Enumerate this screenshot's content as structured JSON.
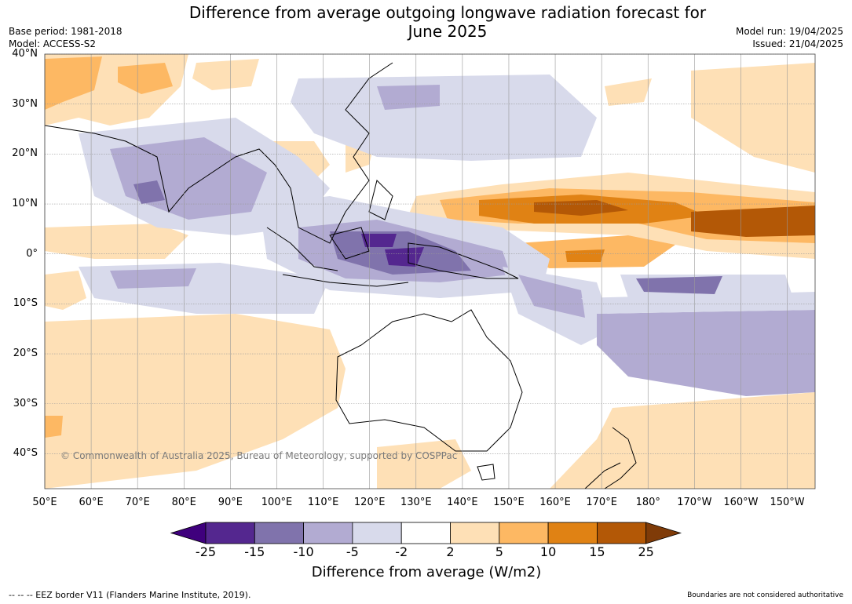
{
  "title": "Difference from average outgoing longwave radiation forecast for\nJune 2025",
  "meta_left": [
    "Base period: 1981-2018",
    "Model: ACCESS-S2"
  ],
  "meta_right": [
    "Model run: 19/04/2025",
    "Issued: 21/04/2025"
  ],
  "copyright": "© Commonwealth of Australia 2025, Bureau of Meteorology, supported by COSPPac",
  "lat_labels": [
    "40°N",
    "30°N",
    "20°N",
    "10°N",
    "0°",
    "10°S",
    "20°S",
    "30°S",
    "40°S"
  ],
  "lon_labels": [
    "50°E",
    "60°E",
    "70°E",
    "80°E",
    "90°E",
    "100°E",
    "110°E",
    "120°E",
    "130°E",
    "140°E",
    "150°E",
    "160°E",
    "170°E",
    "180°",
    "170°W",
    "160°W",
    "150°W"
  ],
  "colorbar": {
    "label": "Difference from average (W/m2)",
    "ticks": [
      "-25",
      "-15",
      "-10",
      "-5",
      "-2",
      "2",
      "5",
      "10",
      "15",
      "25"
    ],
    "colors": [
      "#3f007d",
      "#54278f",
      "#8073ac",
      "#b2abd2",
      "#d8daeb",
      "#ffffff",
      "#fee0b6",
      "#fdb863",
      "#e08214",
      "#b35806",
      "#7f3b08"
    ]
  },
  "footer_left": "--  --  -- EEZ border V11 (Flanders Marine Institute, 2019).",
  "footer_right": "Boundaries are not considered authoritative",
  "map_extent": {
    "lon_min": 50,
    "lon_max": 216,
    "lat_min": -47,
    "lat_max": 40
  }
}
